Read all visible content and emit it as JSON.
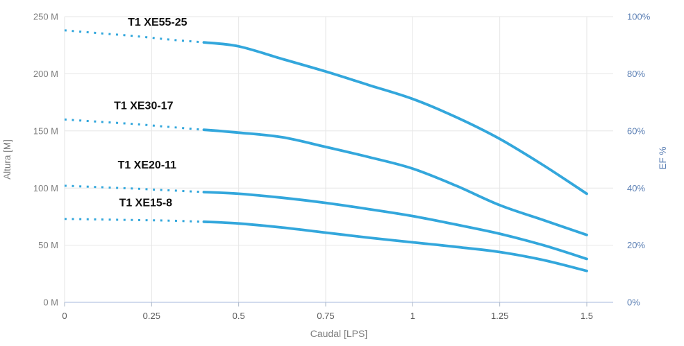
{
  "chart_data": {
    "type": "line",
    "title": "",
    "xlabel": "Caudal [LPS]",
    "ylabel_left": "Altura [M]",
    "ylabel_right": "EF %",
    "x_range": [
      0,
      1.575
    ],
    "y_left_range": [
      0,
      250
    ],
    "y_right_range": [
      0,
      100
    ],
    "grid": true,
    "legend_position": "none",
    "x_tick_values": [
      0,
      0.25,
      0.5,
      0.75,
      1,
      1.25,
      1.5
    ],
    "x_tick_labels": [
      "0",
      "0.25",
      "0.5",
      "0.75",
      "1",
      "1.25",
      "1.5"
    ],
    "y_left_tick_values": [
      250,
      200,
      150,
      100,
      50,
      0
    ],
    "y_left_tick_labels": [
      "250 M",
      "200 M",
      "150 M",
      "100 M",
      "50 M",
      "0 M"
    ],
    "y_right_tick_values": [
      100,
      80,
      60,
      40,
      20,
      0
    ],
    "y_right_tick_labels": [
      "100%",
      "80%",
      "60%",
      "40%",
      "20%",
      "0%"
    ],
    "series_style_note": "each series is dotted from x=0 to solid_from, solid afterwards",
    "series": [
      {
        "name": "T1 XE55-25",
        "solid_from": 0.4,
        "label_at": {
          "lps": 0.267,
          "m": 242
        },
        "points": [
          [
            0,
            238
          ],
          [
            0.1,
            235.5
          ],
          [
            0.2,
            233
          ],
          [
            0.3,
            230
          ],
          [
            0.4,
            227.5
          ],
          [
            0.5,
            224
          ],
          [
            0.625,
            213
          ],
          [
            0.75,
            202
          ],
          [
            0.875,
            190
          ],
          [
            1,
            178
          ],
          [
            1.125,
            162
          ],
          [
            1.25,
            143
          ],
          [
            1.375,
            120
          ],
          [
            1.5,
            95
          ]
        ]
      },
      {
        "name": "T1 XE30-17",
        "solid_from": 0.4,
        "label_at": {
          "lps": 0.227,
          "m": 169
        },
        "points": [
          [
            0,
            160
          ],
          [
            0.1,
            158
          ],
          [
            0.2,
            156
          ],
          [
            0.3,
            153.5
          ],
          [
            0.4,
            151
          ],
          [
            0.5,
            148.5
          ],
          [
            0.625,
            144.5
          ],
          [
            0.75,
            136
          ],
          [
            0.875,
            127
          ],
          [
            1,
            117
          ],
          [
            1.125,
            102
          ],
          [
            1.25,
            85
          ],
          [
            1.375,
            72
          ],
          [
            1.5,
            59
          ]
        ]
      },
      {
        "name": "T1 XE20-11",
        "solid_from": 0.4,
        "label_at": {
          "lps": 0.237,
          "m": 117
        },
        "points": [
          [
            0,
            102
          ],
          [
            0.1,
            100.8
          ],
          [
            0.2,
            99.5
          ],
          [
            0.3,
            98
          ],
          [
            0.4,
            96.5
          ],
          [
            0.5,
            95
          ],
          [
            0.625,
            91.5
          ],
          [
            0.75,
            87
          ],
          [
            0.875,
            81.5
          ],
          [
            1,
            75.5
          ],
          [
            1.125,
            68
          ],
          [
            1.25,
            60
          ],
          [
            1.375,
            50
          ],
          [
            1.5,
            38
          ]
        ]
      },
      {
        "name": "T1 XE15-8",
        "solid_from": 0.4,
        "label_at": {
          "lps": 0.233,
          "m": 84
        },
        "points": [
          [
            0,
            73
          ],
          [
            0.1,
            72.5
          ],
          [
            0.2,
            72
          ],
          [
            0.3,
            71.5
          ],
          [
            0.4,
            70.5
          ],
          [
            0.5,
            69
          ],
          [
            0.625,
            65.5
          ],
          [
            0.75,
            61
          ],
          [
            0.875,
            56.5
          ],
          [
            1,
            52.5
          ],
          [
            1.125,
            48.5
          ],
          [
            1.25,
            44
          ],
          [
            1.375,
            37
          ],
          [
            1.5,
            27.5
          ]
        ]
      }
    ],
    "colors": {
      "curve": "#33a7dc",
      "series_label_text": "#111111",
      "grid_line": "#e6e6e6",
      "axis_line": "#ccd6eb",
      "tick_mark": "#aab6c6",
      "left_tick_text": "#7d7d7d",
      "x_tick_text": "#595959",
      "x_title_text": "#7d7d7d",
      "right_tick_text": "#5b7fb4",
      "background": "#ffffff"
    }
  }
}
